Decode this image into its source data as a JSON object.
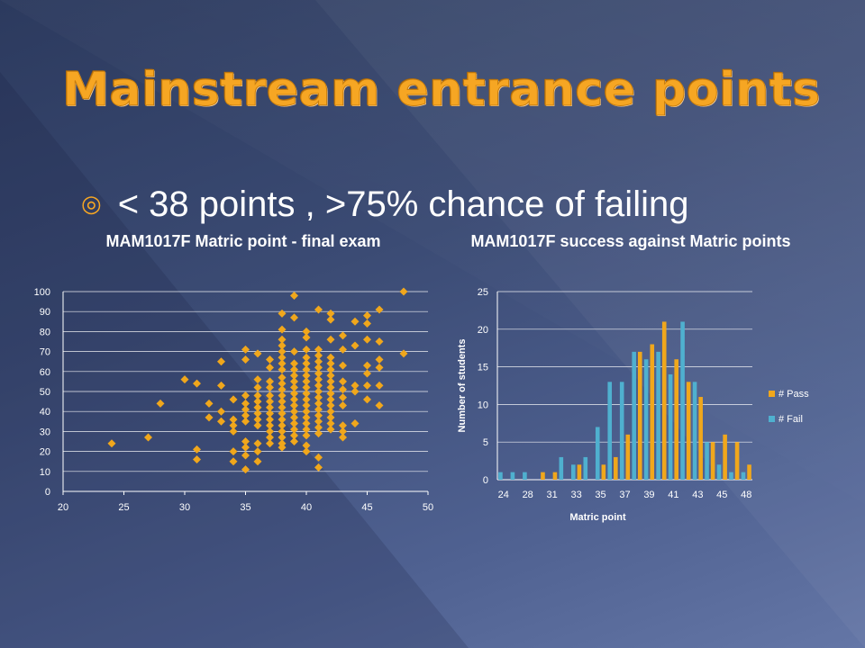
{
  "slide": {
    "title": "Mainstream entrance points",
    "bullet": "< 38 points , >75% chance of failing",
    "bullet_icon": "target-bullet-icon"
  },
  "colors": {
    "title": "#f6a623",
    "pass": "#f0a71c",
    "fail": "#4fb0cf",
    "marker": "#f0a71c"
  },
  "chart_data": [
    {
      "type": "scatter",
      "title": "MAM1017F Matric point - final exam",
      "xlabel": "",
      "ylabel": "",
      "xlim": [
        20,
        50
      ],
      "ylim": [
        0,
        100
      ],
      "xticks": [
        "20",
        "25",
        "30",
        "35",
        "40",
        "45",
        "50"
      ],
      "yticks": [
        "0",
        "10",
        "20",
        "30",
        "40",
        "50",
        "60",
        "70",
        "80",
        "90",
        "100"
      ],
      "grid": true,
      "points": [
        [
          24,
          24
        ],
        [
          27,
          27
        ],
        [
          28,
          44
        ],
        [
          30,
          56
        ],
        [
          31,
          21
        ],
        [
          31,
          16
        ],
        [
          31,
          54
        ],
        [
          32,
          37
        ],
        [
          32,
          44
        ],
        [
          33,
          65
        ],
        [
          33,
          53
        ],
        [
          33,
          40
        ],
        [
          33,
          35
        ],
        [
          34,
          46
        ],
        [
          34,
          36
        ],
        [
          34,
          33
        ],
        [
          34,
          30
        ],
        [
          34,
          20
        ],
        [
          34,
          15
        ],
        [
          35,
          71
        ],
        [
          35,
          66
        ],
        [
          35,
          48
        ],
        [
          35,
          44
        ],
        [
          35,
          41
        ],
        [
          35,
          38
        ],
        [
          35,
          35
        ],
        [
          35,
          25
        ],
        [
          35,
          22
        ],
        [
          35,
          18
        ],
        [
          35,
          11
        ],
        [
          36,
          69
        ],
        [
          36,
          56
        ],
        [
          36,
          52
        ],
        [
          36,
          48
        ],
        [
          36,
          45
        ],
        [
          36,
          42
        ],
        [
          36,
          39
        ],
        [
          36,
          36
        ],
        [
          36,
          33
        ],
        [
          36,
          24
        ],
        [
          36,
          20
        ],
        [
          36,
          15
        ],
        [
          37,
          66
        ],
        [
          37,
          62
        ],
        [
          37,
          55
        ],
        [
          37,
          52
        ],
        [
          37,
          48
        ],
        [
          37,
          45
        ],
        [
          37,
          42
        ],
        [
          37,
          39
        ],
        [
          37,
          36
        ],
        [
          37,
          33
        ],
        [
          37,
          30
        ],
        [
          37,
          27
        ],
        [
          37,
          24
        ],
        [
          38,
          89
        ],
        [
          38,
          81
        ],
        [
          38,
          76
        ],
        [
          38,
          73
        ],
        [
          38,
          70
        ],
        [
          38,
          67
        ],
        [
          38,
          64
        ],
        [
          38,
          61
        ],
        [
          38,
          57
        ],
        [
          38,
          54
        ],
        [
          38,
          51
        ],
        [
          38,
          48
        ],
        [
          38,
          45
        ],
        [
          38,
          42
        ],
        [
          38,
          39
        ],
        [
          38,
          36
        ],
        [
          38,
          33
        ],
        [
          38,
          30
        ],
        [
          38,
          27
        ],
        [
          38,
          24
        ],
        [
          38,
          22
        ],
        [
          39,
          98
        ],
        [
          39,
          87
        ],
        [
          39,
          70
        ],
        [
          39,
          64
        ],
        [
          39,
          61
        ],
        [
          39,
          58
        ],
        [
          39,
          55
        ],
        [
          39,
          52
        ],
        [
          39,
          49
        ],
        [
          39,
          46
        ],
        [
          39,
          43
        ],
        [
          39,
          40
        ],
        [
          39,
          37
        ],
        [
          39,
          34
        ],
        [
          39,
          31
        ],
        [
          39,
          28
        ],
        [
          39,
          25
        ],
        [
          40,
          80
        ],
        [
          40,
          77
        ],
        [
          40,
          71
        ],
        [
          40,
          67
        ],
        [
          40,
          64
        ],
        [
          40,
          61
        ],
        [
          40,
          58
        ],
        [
          40,
          55
        ],
        [
          40,
          52
        ],
        [
          40,
          49
        ],
        [
          40,
          46
        ],
        [
          40,
          43
        ],
        [
          40,
          40
        ],
        [
          40,
          37
        ],
        [
          40,
          34
        ],
        [
          40,
          31
        ],
        [
          40,
          28
        ],
        [
          40,
          23
        ],
        [
          40,
          20
        ],
        [
          41,
          91
        ],
        [
          41,
          71
        ],
        [
          41,
          68
        ],
        [
          41,
          65
        ],
        [
          41,
          62
        ],
        [
          41,
          59
        ],
        [
          41,
          56
        ],
        [
          41,
          53
        ],
        [
          41,
          50
        ],
        [
          41,
          47
        ],
        [
          41,
          44
        ],
        [
          41,
          41
        ],
        [
          41,
          38
        ],
        [
          41,
          35
        ],
        [
          41,
          32
        ],
        [
          41,
          29
        ],
        [
          41,
          17
        ],
        [
          41,
          12
        ],
        [
          42,
          89
        ],
        [
          42,
          86
        ],
        [
          42,
          76
        ],
        [
          42,
          67
        ],
        [
          42,
          64
        ],
        [
          42,
          61
        ],
        [
          42,
          58
        ],
        [
          42,
          55
        ],
        [
          42,
          52
        ],
        [
          42,
          49
        ],
        [
          42,
          46
        ],
        [
          42,
          43
        ],
        [
          42,
          40
        ],
        [
          42,
          37
        ],
        [
          42,
          34
        ],
        [
          42,
          31
        ],
        [
          43,
          78
        ],
        [
          43,
          71
        ],
        [
          43,
          63
        ],
        [
          43,
          55
        ],
        [
          43,
          51
        ],
        [
          43,
          47
        ],
        [
          43,
          43
        ],
        [
          43,
          33
        ],
        [
          43,
          30
        ],
        [
          43,
          27
        ],
        [
          44,
          85
        ],
        [
          44,
          73
        ],
        [
          44,
          53
        ],
        [
          44,
          50
        ],
        [
          44,
          34
        ],
        [
          45,
          88
        ],
        [
          45,
          84
        ],
        [
          45,
          76
        ],
        [
          45,
          63
        ],
        [
          45,
          59
        ],
        [
          45,
          53
        ],
        [
          45,
          46
        ],
        [
          46,
          91
        ],
        [
          46,
          75
        ],
        [
          46,
          66
        ],
        [
          46,
          62
        ],
        [
          46,
          53
        ],
        [
          46,
          43
        ],
        [
          48,
          100
        ],
        [
          48,
          69
        ]
      ]
    },
    {
      "type": "bar",
      "title": "MAM1017F success against Matric points",
      "xlabel": "Matric point",
      "ylabel": "Number of students",
      "ylim": [
        0,
        25
      ],
      "yticks": [
        "0",
        "5",
        "10",
        "15",
        "20",
        "25"
      ],
      "legend_position": "right",
      "categories": [
        "24",
        "26",
        "28",
        "29",
        "31",
        "32",
        "33",
        "34",
        "35",
        "36",
        "37",
        "38",
        "39",
        "40",
        "41",
        "42",
        "43",
        "44",
        "45",
        "46",
        "48"
      ],
      "tick_labels": [
        "24",
        "28",
        "31",
        "33",
        "35",
        "37",
        "39",
        "41",
        "43",
        "45",
        "48"
      ],
      "tick_label_indices": [
        0,
        2,
        4,
        6,
        8,
        10,
        12,
        14,
        16,
        18,
        20
      ],
      "series": [
        {
          "name": "# Pass",
          "values": [
            0,
            0,
            0,
            1,
            1,
            0,
            2,
            0,
            2,
            3,
            6,
            17,
            18,
            21,
            16,
            13,
            11,
            5,
            6,
            5,
            2
          ]
        },
        {
          "name": "# Fail",
          "values": [
            1,
            1,
            1,
            0,
            0,
            3,
            2,
            3,
            7,
            13,
            13,
            17,
            16,
            17,
            14,
            21,
            13,
            5,
            2,
            1,
            1
          ]
        }
      ]
    }
  ]
}
